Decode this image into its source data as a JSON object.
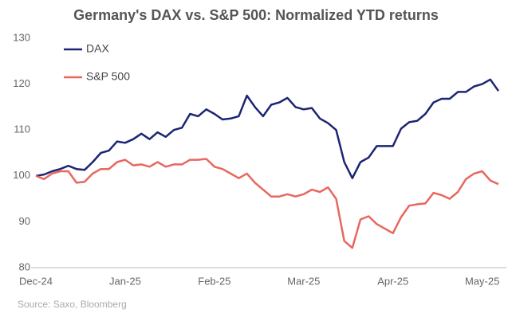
{
  "chart_data": {
    "type": "line",
    "title": "Germany's DAX vs. S&P 500: Normalized YTD returns",
    "source": "Source: Saxo, Bloomberg",
    "categories": [
      "Dec-24",
      null,
      null,
      null,
      null,
      null,
      null,
      null,
      null,
      null,
      null,
      "Jan-25",
      null,
      null,
      null,
      null,
      null,
      null,
      null,
      null,
      null,
      null,
      "Feb-25",
      null,
      null,
      null,
      null,
      null,
      null,
      null,
      null,
      null,
      null,
      "Mar-25",
      null,
      null,
      null,
      null,
      null,
      null,
      null,
      null,
      null,
      null,
      "Apr-25",
      null,
      null,
      null,
      null,
      null,
      null,
      null,
      null,
      null,
      null,
      "May-25",
      null,
      null
    ],
    "series": [
      {
        "name": "DAX",
        "color": "#1c2573",
        "values": [
          100,
          100.3,
          101,
          101.5,
          102.2,
          101.5,
          101.3,
          103,
          105,
          105.5,
          107.5,
          107.2,
          108,
          109.2,
          108,
          109.5,
          108.5,
          110,
          110.5,
          113.5,
          113,
          114.5,
          113.5,
          112.3,
          112.5,
          113,
          117.5,
          115,
          113,
          115.5,
          116,
          117,
          115,
          114.5,
          114.8,
          112.5,
          111.5,
          110,
          103,
          99.5,
          103,
          104,
          106.5,
          106.5,
          106.5,
          110.3,
          111.7,
          112,
          113.5,
          116,
          116.8,
          116.8,
          118.3,
          118.3,
          119.5,
          120,
          121,
          118.5
        ]
      },
      {
        "name": "S&P 500",
        "color": "#e8675f",
        "values": [
          100,
          99.3,
          100.5,
          101,
          101,
          98.5,
          98.7,
          100.5,
          101.5,
          101.5,
          103,
          103.5,
          102.3,
          102.5,
          102,
          103,
          102,
          102.5,
          102.5,
          103.5,
          103.5,
          103.7,
          102,
          101.5,
          100.5,
          99.5,
          100.5,
          98.5,
          97,
          95.5,
          95.5,
          96,
          95.5,
          96,
          97,
          96.5,
          97.5,
          95,
          85.8,
          84.3,
          90.5,
          91.2,
          89.5,
          88.5,
          87.5,
          91,
          93.5,
          93.8,
          94,
          96.3,
          95.8,
          95,
          96.5,
          99.3,
          100.5,
          101,
          99,
          98.2
        ]
      }
    ],
    "ylim": [
      80,
      130
    ],
    "yticks": [
      80,
      90,
      100,
      110,
      120,
      130
    ],
    "grid": false
  }
}
